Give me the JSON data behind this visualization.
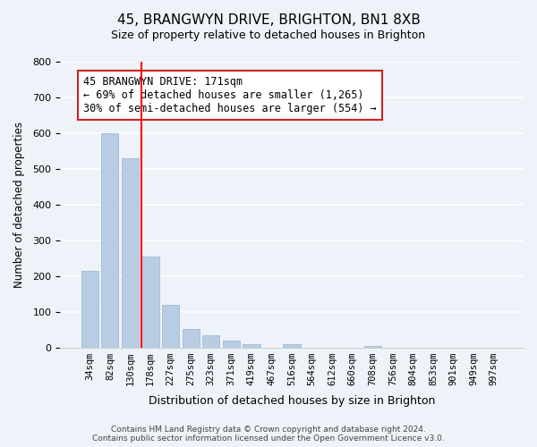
{
  "title_line1": "45, BRANGWYN DRIVE, BRIGHTON, BN1 8XB",
  "title_line2": "Size of property relative to detached houses in Brighton",
  "xlabel": "Distribution of detached houses by size in Brighton",
  "ylabel": "Number of detached properties",
  "bin_labels": [
    "34sqm",
    "82sqm",
    "130sqm",
    "178sqm",
    "227sqm",
    "275sqm",
    "323sqm",
    "371sqm",
    "419sqm",
    "467sqm",
    "516sqm",
    "564sqm",
    "612sqm",
    "660sqm",
    "708sqm",
    "756sqm",
    "804sqm",
    "853sqm",
    "901sqm",
    "949sqm",
    "997sqm"
  ],
  "bar_heights": [
    215,
    600,
    530,
    255,
    118,
    52,
    35,
    20,
    10,
    0,
    8,
    0,
    0,
    0,
    5,
    0,
    0,
    0,
    0,
    0,
    0
  ],
  "bar_color": "#b8cce4",
  "bar_edge_color": "#9ab3cc",
  "vline_color": "#ff0000",
  "vline_x": 2.575,
  "ylim": [
    0,
    800
  ],
  "yticks": [
    0,
    100,
    200,
    300,
    400,
    500,
    600,
    700,
    800
  ],
  "annotation_text_line1": "45 BRANGWYN DRIVE: 171sqm",
  "annotation_text_line2": "← 69% of detached houses are smaller (1,265)",
  "annotation_text_line3": "30% of semi-detached houses are larger (554) →",
  "footer_line1": "Contains HM Land Registry data © Crown copyright and database right 2024.",
  "footer_line2": "Contains public sector information licensed under the Open Government Licence v3.0.",
  "bg_color": "#eef2f9",
  "plot_bg_color": "#eef2f9"
}
